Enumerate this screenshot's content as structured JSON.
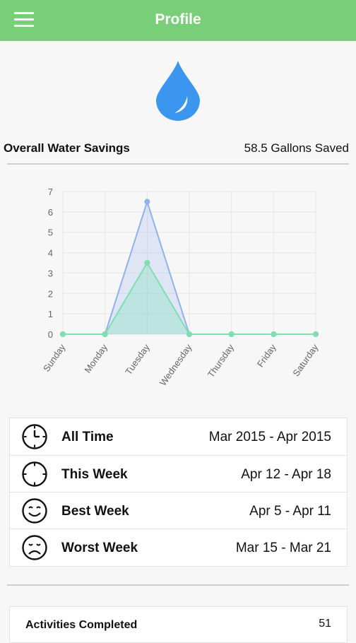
{
  "header": {
    "title": "Profile",
    "menu_icon": "hamburger-menu-icon"
  },
  "colors": {
    "header_bg": "#79cf78",
    "drop": "#3b96f0",
    "series_total": "#8fb2ee",
    "series_best": "#7edfb0"
  },
  "savings": {
    "label": "Overall Water Savings",
    "value": "58.5 Gallons Saved",
    "icon": "water-drop-icon"
  },
  "chart_data": {
    "type": "line",
    "categories": [
      "Sunday",
      "Monday",
      "Tuesday",
      "Wednesday",
      "Thursday",
      "Friday",
      "Saturday"
    ],
    "series": [
      {
        "values": [
          0,
          0,
          6.5,
          0,
          0,
          0,
          0
        ]
      },
      {
        "values": [
          0,
          0,
          3.5,
          0,
          0,
          0,
          0
        ]
      }
    ],
    "yticks": [
      "0",
      "1",
      "2",
      "3",
      "4",
      "5",
      "6",
      "7"
    ],
    "ylim": [
      0,
      7
    ],
    "grid": true
  },
  "periods": [
    {
      "label": "All Time",
      "range": "Mar 2015 - Apr 2015",
      "icon": "clock-icon"
    },
    {
      "label": "This Week",
      "range": "Apr 12 - Apr 18",
      "icon": "crosshair-clock-icon"
    },
    {
      "label": "Best Week",
      "range": "Apr 5 - Apr 11",
      "icon": "smiley-face-icon"
    },
    {
      "label": "Worst Week",
      "range": "Mar 15 - Mar 21",
      "icon": "sad-face-icon"
    }
  ],
  "stats": [
    {
      "label": "Activities Completed",
      "value": "51"
    }
  ]
}
